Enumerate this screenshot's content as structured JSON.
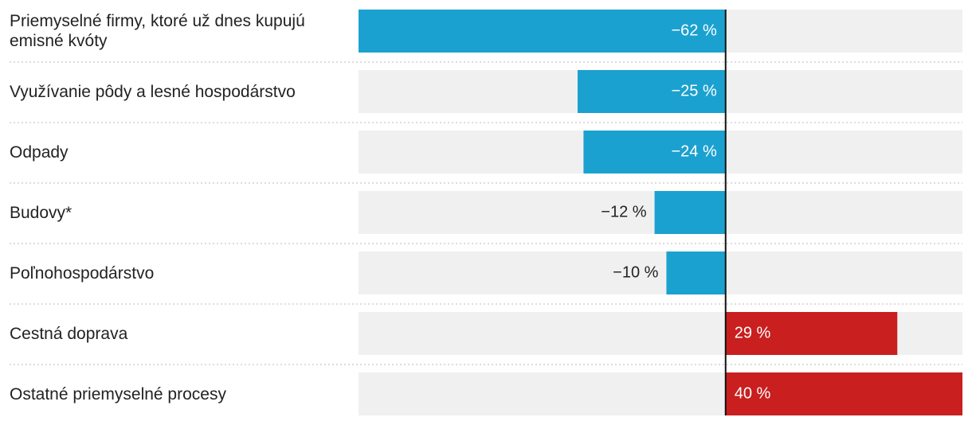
{
  "chart_data": {
    "type": "bar",
    "orientation": "horizontal",
    "categories": [
      "Priemyselné firmy, ktoré už dnes kupujú emisné kvóty",
      "Využívanie pôdy a lesné hospodárstvo",
      "Odpady",
      "Budovy*",
      "Poľnohospodárstvo",
      "Cestná doprava",
      "Ostatné priemyselné procesy"
    ],
    "values": [
      -62,
      -25,
      -24,
      -12,
      -10,
      29,
      40
    ],
    "value_labels": [
      "−62 %",
      "−25 %",
      "−24 %",
      "−12 %",
      "−10 %",
      "29 %",
      "40 %"
    ],
    "negative_color": "#1ba1d0",
    "positive_color": "#c91f1f",
    "xlim": [
      -62,
      40
    ]
  }
}
